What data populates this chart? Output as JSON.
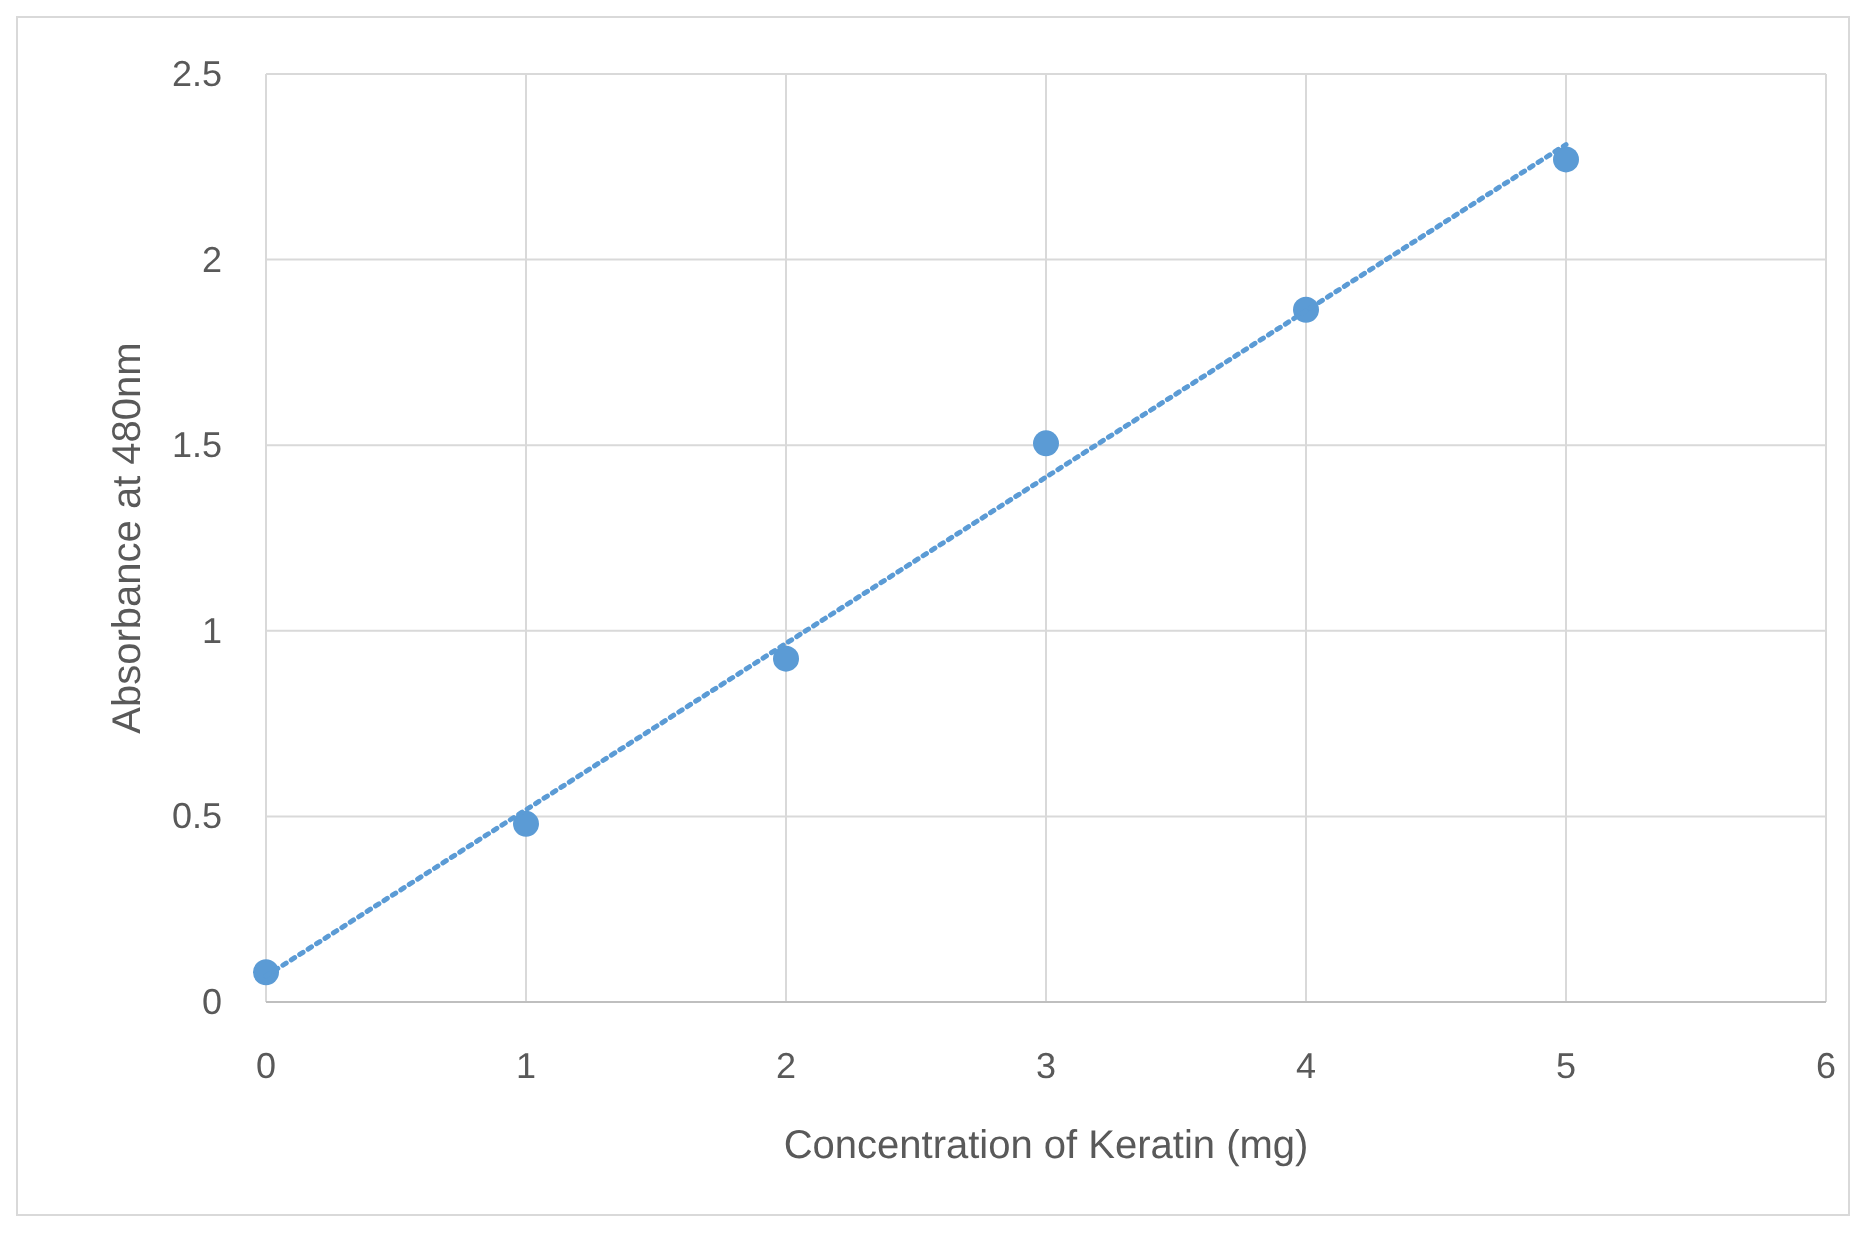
{
  "chart_data": {
    "type": "scatter",
    "xlabel": "Concentration of Keratin (mg)",
    "ylabel": "Absorbance at 480nm",
    "xlim": [
      0,
      6
    ],
    "xticks": [
      0,
      1,
      2,
      3,
      4,
      5,
      6
    ],
    "ylim": [
      0,
      2.5
    ],
    "yticks": [
      0,
      0.5,
      1,
      1.5,
      2,
      2.5
    ],
    "grid": true,
    "marker": "circle",
    "series": [
      {
        "color": "#5b9bd5",
        "x": [
          0,
          1,
          2,
          3,
          4,
          5
        ],
        "values": [
          0.08,
          0.48,
          0.925,
          1.505,
          1.865,
          2.27
        ]
      },
      {
        "type": "line",
        "color": "#5b9bd5",
        "line_style": "dotted",
        "marker": "none",
        "x": [
          0,
          5
        ],
        "values": [
          0.07,
          2.31
        ]
      }
    ]
  }
}
